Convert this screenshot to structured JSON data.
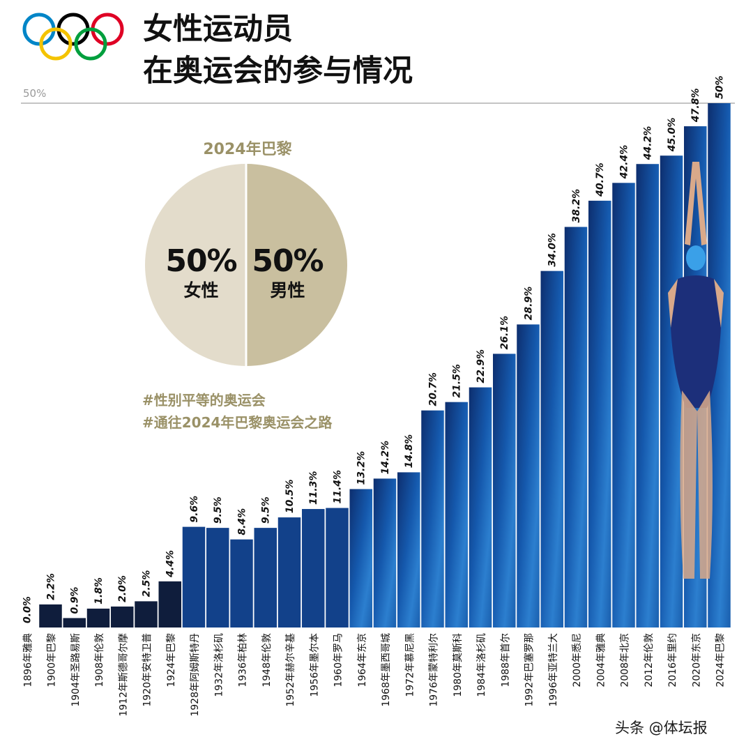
{
  "header": {
    "title_line1": "女性运动员",
    "title_line2": "在奥运会的参与情况",
    "reference_label": "50%"
  },
  "logo": {
    "name": "olympic-rings",
    "colors": [
      "#0085c7",
      "#000000",
      "#df0024",
      "#f4c300",
      "#009f3d"
    ]
  },
  "pie": {
    "title": "2024年巴黎",
    "female_pct": "50%",
    "female_label": "女性",
    "male_pct": "50%",
    "male_label": "男性",
    "female_color": "#e3dccb",
    "male_color": "#c9bf9f"
  },
  "hashtags": [
    "#性别平等的奥运会",
    "#通往2024年巴黎奥运会之路"
  ],
  "watermark": "头条 @体坛报",
  "chart_data": {
    "type": "bar",
    "title": "",
    "xlabel": "",
    "ylabel": "",
    "ylim": [
      0,
      50
    ],
    "categories": [
      "1896年雅典",
      "1900年巴黎",
      "1904年圣路易斯",
      "1908年伦敦",
      "1912年斯德哥尔摩",
      "1920年安特卫普",
      "1924年巴黎",
      "1928年阿姆斯特丹",
      "1932年洛杉矶",
      "1936年柏林",
      "1948年伦敦",
      "1952年赫尔辛基",
      "1956年墨尔本",
      "1960年罗马",
      "1964年东京",
      "1968年墨西哥城",
      "1972年慕尼黑",
      "1976年蒙特利尔",
      "1980年莫斯科",
      "1984年洛杉矶",
      "1988年首尔",
      "1992年巴塞罗那",
      "1996年亚特兰大",
      "2000年悉尼",
      "2004年雅典",
      "2008年北京",
      "2012年伦敦",
      "2016年里约",
      "2020年东京",
      "2024年巴黎"
    ],
    "values": [
      0.0,
      2.2,
      0.9,
      1.8,
      2.0,
      2.5,
      4.4,
      9.6,
      9.5,
      8.4,
      9.5,
      10.5,
      11.3,
      11.4,
      13.2,
      14.2,
      14.8,
      20.7,
      21.5,
      22.9,
      26.1,
      28.9,
      34.0,
      38.2,
      40.7,
      42.4,
      44.2,
      45.0,
      47.8,
      50
    ],
    "value_labels": [
      "0.0%",
      "2.2%",
      "0.9%",
      "1.8%",
      "2.0%",
      "2.5%",
      "4.4%",
      "9.6%",
      "9.5%",
      "8.4%",
      "9.5%",
      "10.5%",
      "11.3%",
      "11.4%",
      "13.2%",
      "14.2%",
      "14.8%",
      "20.7%",
      "21.5%",
      "22.9%",
      "26.1%",
      "28.9%",
      "34.0%",
      "38.2%",
      "40.7%",
      "42.4%",
      "44.2%",
      "45.0%",
      "47.8%",
      "50%"
    ],
    "colors": {
      "dark": "#0f1d3c",
      "mid": "#12418a",
      "bright": "#2f7fd0"
    }
  }
}
